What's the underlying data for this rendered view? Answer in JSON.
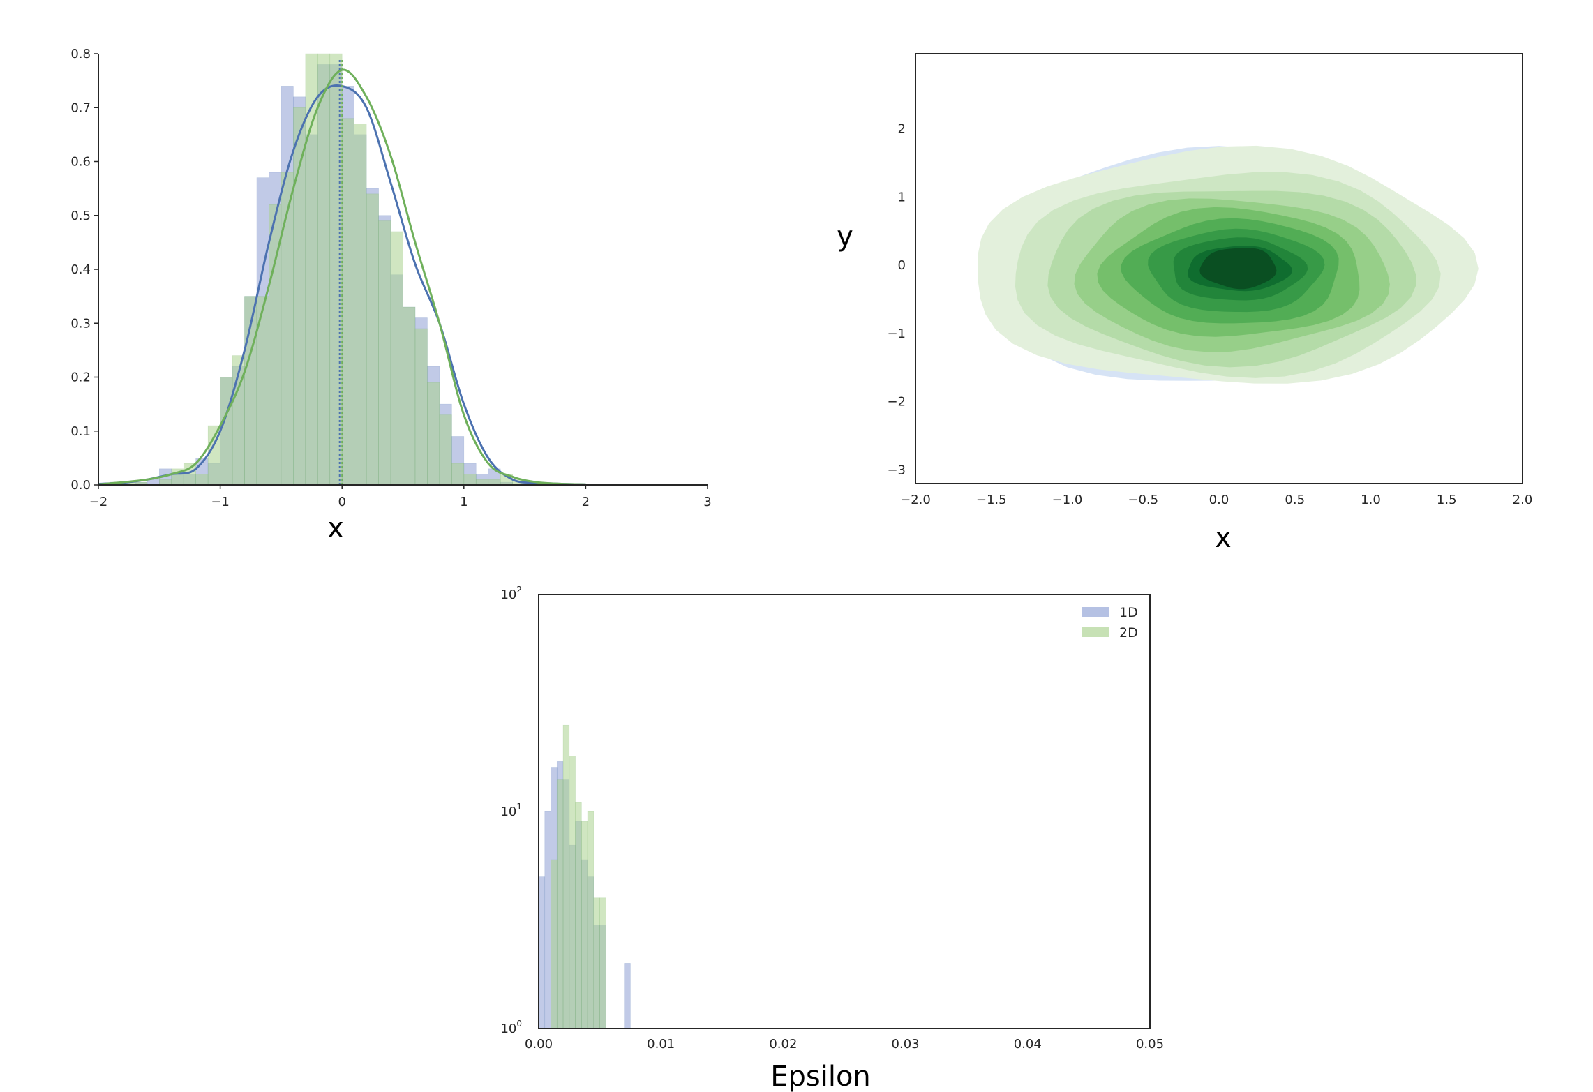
{
  "colors": {
    "blue": "#4c72b0",
    "green": "#6fb05b",
    "blue_fill": "#8e9fd4",
    "green_fill": "#a9d18e",
    "axis": "#262626"
  },
  "chart_data": [
    {
      "id": "hist1d",
      "type": "bar",
      "xlabel": "x",
      "ylabel": "",
      "xlim": [
        -2,
        3
      ],
      "ylim": [
        0,
        0.8
      ],
      "xticks": [
        -2,
        -1,
        0,
        1,
        2,
        3
      ],
      "xtick_labels": [
        "−2",
        "−1",
        "0",
        "1",
        "2",
        "3"
      ],
      "yticks": [
        0,
        0.1,
        0.2,
        0.3,
        0.4,
        0.5,
        0.6,
        0.7,
        0.8
      ],
      "ytick_labels": [
        "0.0",
        "0.1",
        "0.2",
        "0.3",
        "0.4",
        "0.5",
        "0.6",
        "0.7",
        "0.8"
      ],
      "grid": false,
      "series": [
        {
          "color": "blue",
          "bin_width": 0.1,
          "bins": [
            -1.85,
            -1.75,
            -1.65,
            -1.55,
            -1.45,
            -1.35,
            -1.25,
            -1.15,
            -1.05,
            -0.95,
            -0.85,
            -0.75,
            -0.65,
            -0.55,
            -0.45,
            -0.35,
            -0.25,
            -0.15,
            -0.05,
            0.05,
            0.15,
            0.25,
            0.35,
            0.45,
            0.55,
            0.65,
            0.75,
            0.85,
            0.95,
            1.05,
            1.15,
            1.25,
            1.35
          ],
          "values": [
            0.005,
            0.0,
            0.005,
            0.01,
            0.03,
            0.02,
            0.02,
            0.05,
            0.04,
            0.2,
            0.22,
            0.35,
            0.57,
            0.58,
            0.74,
            0.72,
            0.65,
            0.78,
            0.78,
            0.74,
            0.65,
            0.55,
            0.5,
            0.39,
            0.33,
            0.31,
            0.22,
            0.15,
            0.09,
            0.04,
            0.02,
            0.03,
            0.005
          ],
          "kde": [
            [
              -2.0,
              0.002
            ],
            [
              -1.8,
              0.004
            ],
            [
              -1.6,
              0.01
            ],
            [
              -1.4,
              0.02
            ],
            [
              -1.2,
              0.03
            ],
            [
              -1.0,
              0.1
            ],
            [
              -0.8,
              0.25
            ],
            [
              -0.6,
              0.45
            ],
            [
              -0.4,
              0.62
            ],
            [
              -0.2,
              0.72
            ],
            [
              0.0,
              0.74
            ],
            [
              0.2,
              0.7
            ],
            [
              0.4,
              0.56
            ],
            [
              0.6,
              0.41
            ],
            [
              0.8,
              0.3
            ],
            [
              1.0,
              0.15
            ],
            [
              1.2,
              0.05
            ],
            [
              1.4,
              0.01
            ],
            [
              1.6,
              0.004
            ],
            [
              1.8,
              0.002
            ],
            [
              2.0,
              0.001
            ]
          ],
          "mean_line": -0.02
        },
        {
          "color": "green",
          "bin_width": 0.1,
          "bins": [
            -1.85,
            -1.75,
            -1.65,
            -1.55,
            -1.45,
            -1.35,
            -1.25,
            -1.15,
            -1.05,
            -0.95,
            -0.85,
            -0.75,
            -0.65,
            -0.55,
            -0.45,
            -0.35,
            -0.25,
            -0.15,
            -0.05,
            0.05,
            0.15,
            0.25,
            0.35,
            0.45,
            0.55,
            0.65,
            0.75,
            0.85,
            0.95,
            1.05,
            1.15,
            1.25,
            1.35,
            1.45,
            1.55
          ],
          "values": [
            0.005,
            0.005,
            0.005,
            0.0,
            0.01,
            0.03,
            0.04,
            0.02,
            0.11,
            0.2,
            0.24,
            0.35,
            0.35,
            0.52,
            0.58,
            0.7,
            0.8,
            0.8,
            0.8,
            0.68,
            0.67,
            0.54,
            0.49,
            0.47,
            0.33,
            0.29,
            0.19,
            0.13,
            0.04,
            0.02,
            0.01,
            0.01,
            0.02,
            0.01,
            0.005
          ],
          "kde": [
            [
              -2.0,
              0.001
            ],
            [
              -1.8,
              0.005
            ],
            [
              -1.6,
              0.01
            ],
            [
              -1.4,
              0.02
            ],
            [
              -1.2,
              0.04
            ],
            [
              -1.0,
              0.11
            ],
            [
              -0.8,
              0.21
            ],
            [
              -0.6,
              0.37
            ],
            [
              -0.4,
              0.55
            ],
            [
              -0.2,
              0.7
            ],
            [
              0.0,
              0.77
            ],
            [
              0.2,
              0.72
            ],
            [
              0.4,
              0.61
            ],
            [
              0.6,
              0.45
            ],
            [
              0.8,
              0.3
            ],
            [
              1.0,
              0.13
            ],
            [
              1.2,
              0.04
            ],
            [
              1.4,
              0.015
            ],
            [
              1.6,
              0.005
            ],
            [
              1.8,
              0.002
            ],
            [
              2.0,
              0.001
            ]
          ],
          "mean_line": 0.0
        }
      ]
    },
    {
      "id": "kde2d",
      "type": "heatmap",
      "xlabel": "x",
      "ylabel": "y",
      "xlim": [
        -2.0,
        2.0
      ],
      "ylim": [
        -3.2,
        3.1
      ],
      "xticks": [
        -2.0,
        -1.5,
        -1.0,
        -0.5,
        0.0,
        0.5,
        1.0,
        1.5,
        2.0
      ],
      "xtick_labels": [
        "−2.0",
        "−1.5",
        "−1.0",
        "−0.5",
        "0.0",
        "0.5",
        "1.0",
        "1.5",
        "2.0"
      ],
      "yticks": [
        -3,
        -2,
        -1,
        0,
        1,
        2
      ],
      "ytick_labels": [
        "−3",
        "−2",
        "−1",
        "0",
        "1",
        "2"
      ],
      "grid": false,
      "background_contour": {
        "color": "#d6e3f5",
        "cx": 0.0,
        "cy": -0.05,
        "rx": 1.55,
        "ry": 1.72
      },
      "contours": [
        {
          "color": "#e3f0dc",
          "cx": 0.02,
          "cy": -0.05,
          "rx": 1.65,
          "ry": 1.72
        },
        {
          "color": "#cde6c3",
          "cx": 0.05,
          "cy": -0.12,
          "rx": 1.4,
          "ry": 1.48
        },
        {
          "color": "#b4dba8",
          "cx": 0.07,
          "cy": -0.13,
          "rx": 1.21,
          "ry": 1.29
        },
        {
          "color": "#97cf89",
          "cx": 0.08,
          "cy": -0.13,
          "rx": 1.03,
          "ry": 1.11
        },
        {
          "color": "#75bf6b",
          "cx": 0.09,
          "cy": -0.12,
          "rx": 0.86,
          "ry": 0.94
        },
        {
          "color": "#52ad55",
          "cx": 0.1,
          "cy": -0.1,
          "rx": 0.71,
          "ry": 0.77
        },
        {
          "color": "#379a47",
          "cx": 0.11,
          "cy": -0.08,
          "rx": 0.57,
          "ry": 0.61
        },
        {
          "color": "#22853a",
          "cx": 0.12,
          "cy": -0.06,
          "rx": 0.44,
          "ry": 0.46
        },
        {
          "color": "#0f6d2f",
          "cx": 0.13,
          "cy": -0.05,
          "rx": 0.34,
          "ry": 0.33
        },
        {
          "color": "#0a4f22",
          "cx": 0.13,
          "cy": -0.04,
          "rx": 0.25,
          "ry": 0.3
        }
      ]
    },
    {
      "id": "epsilon",
      "type": "bar",
      "xlabel": "Epsilon",
      "ylabel": "",
      "xlim": [
        0.0,
        0.05
      ],
      "ylim": [
        1,
        100
      ],
      "log_y": true,
      "xticks": [
        0.0,
        0.01,
        0.02,
        0.03,
        0.04,
        0.05
      ],
      "xtick_labels": [
        "0.00",
        "0.01",
        "0.02",
        "0.03",
        "0.04",
        "0.05"
      ],
      "yticks": [
        1,
        10,
        100
      ],
      "ytick_labels": [
        {
          "base": "10",
          "exp": "0"
        },
        {
          "base": "10",
          "exp": "1"
        },
        {
          "base": "10",
          "exp": "2"
        }
      ],
      "grid": false,
      "legend_position": "top-right",
      "series": [
        {
          "name": "1D",
          "color": "blue",
          "bin_width": 0.0005,
          "bins": [
            0.00025,
            0.00075,
            0.00125,
            0.00175,
            0.00225,
            0.00275,
            0.00325,
            0.00375,
            0.00425,
            0.00475,
            0.00525,
            0.00725
          ],
          "values": [
            5,
            10,
            16,
            17,
            14,
            7,
            9,
            6,
            5,
            3,
            3,
            2
          ]
        },
        {
          "name": "2D",
          "color": "green",
          "bin_width": 0.0005,
          "bins": [
            0.00125,
            0.00175,
            0.00225,
            0.00275,
            0.00325,
            0.00375,
            0.00425,
            0.00475,
            0.00525
          ],
          "values": [
            6,
            14,
            25,
            18,
            11,
            9,
            10,
            4,
            4
          ]
        }
      ]
    }
  ]
}
